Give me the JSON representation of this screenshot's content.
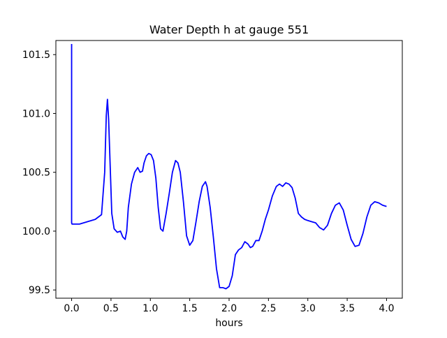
{
  "chart_data": {
    "type": "line",
    "title": "Water Depth h at gauge 551",
    "xlabel": "hours",
    "ylabel": "",
    "xlim": [
      -0.2,
      4.2
    ],
    "ylim": [
      99.43,
      101.62
    ],
    "x_ticks": [
      0.0,
      0.5,
      1.0,
      1.5,
      2.0,
      2.5,
      3.0,
      3.5,
      4.0
    ],
    "x_tick_labels": [
      "0.0",
      "0.5",
      "1.0",
      "1.5",
      "2.0",
      "2.5",
      "3.0",
      "3.5",
      "4.0"
    ],
    "y_ticks": [
      99.5,
      100.0,
      100.5,
      101.0,
      101.5
    ],
    "y_tick_labels": [
      "99.5",
      "100.0",
      "100.5",
      "101.0",
      "101.5"
    ],
    "grid": false,
    "colors": {
      "line": "#0000ff",
      "axes": "#000000",
      "background": "#ffffff"
    },
    "series": [
      {
        "x": [
          0.0,
          0.0,
          0.005,
          0.1,
          0.2,
          0.3,
          0.38,
          0.42,
          0.44,
          0.455,
          0.47,
          0.49,
          0.51,
          0.54,
          0.58,
          0.62,
          0.65,
          0.68,
          0.7,
          0.72,
          0.76,
          0.8,
          0.84,
          0.87,
          0.9,
          0.92,
          0.95,
          0.98,
          1.01,
          1.04,
          1.07,
          1.1,
          1.13,
          1.16,
          1.2,
          1.24,
          1.28,
          1.32,
          1.35,
          1.38,
          1.42,
          1.46,
          1.5,
          1.54,
          1.58,
          1.62,
          1.66,
          1.7,
          1.72,
          1.76,
          1.8,
          1.84,
          1.88,
          1.92,
          1.96,
          2.0,
          2.04,
          2.08,
          2.12,
          2.16,
          2.2,
          2.24,
          2.27,
          2.3,
          2.34,
          2.38,
          2.42,
          2.46,
          2.5,
          2.55,
          2.6,
          2.64,
          2.68,
          2.72,
          2.76,
          2.8,
          2.84,
          2.88,
          2.92,
          2.96,
          3.0,
          3.05,
          3.1,
          3.15,
          3.2,
          3.25,
          3.3,
          3.35,
          3.4,
          3.45,
          3.5,
          3.55,
          3.6,
          3.65,
          3.7,
          3.75,
          3.8,
          3.85,
          3.9,
          3.95,
          4.0
        ],
        "y": [
          101.59,
          100.07,
          100.06,
          100.06,
          100.08,
          100.1,
          100.14,
          100.5,
          100.98,
          101.12,
          100.95,
          100.55,
          100.15,
          100.02,
          99.99,
          100.0,
          99.95,
          99.93,
          100.0,
          100.2,
          100.4,
          100.5,
          100.54,
          100.5,
          100.51,
          100.58,
          100.64,
          100.66,
          100.65,
          100.6,
          100.45,
          100.2,
          100.02,
          100.0,
          100.15,
          100.32,
          100.5,
          100.6,
          100.58,
          100.5,
          100.25,
          99.96,
          99.88,
          99.92,
          100.08,
          100.25,
          100.38,
          100.42,
          100.38,
          100.2,
          99.95,
          99.68,
          99.52,
          99.52,
          99.51,
          99.53,
          99.62,
          99.8,
          99.84,
          99.86,
          99.91,
          99.89,
          99.86,
          99.87,
          99.92,
          99.92,
          100.0,
          100.1,
          100.18,
          100.3,
          100.38,
          100.4,
          100.38,
          100.41,
          100.4,
          100.37,
          100.28,
          100.15,
          100.12,
          100.1,
          100.09,
          100.08,
          100.07,
          100.03,
          100.01,
          100.05,
          100.15,
          100.22,
          100.24,
          100.18,
          100.05,
          99.93,
          99.87,
          99.88,
          99.98,
          100.12,
          100.22,
          100.25,
          100.24,
          100.22,
          100.21
        ]
      }
    ]
  }
}
